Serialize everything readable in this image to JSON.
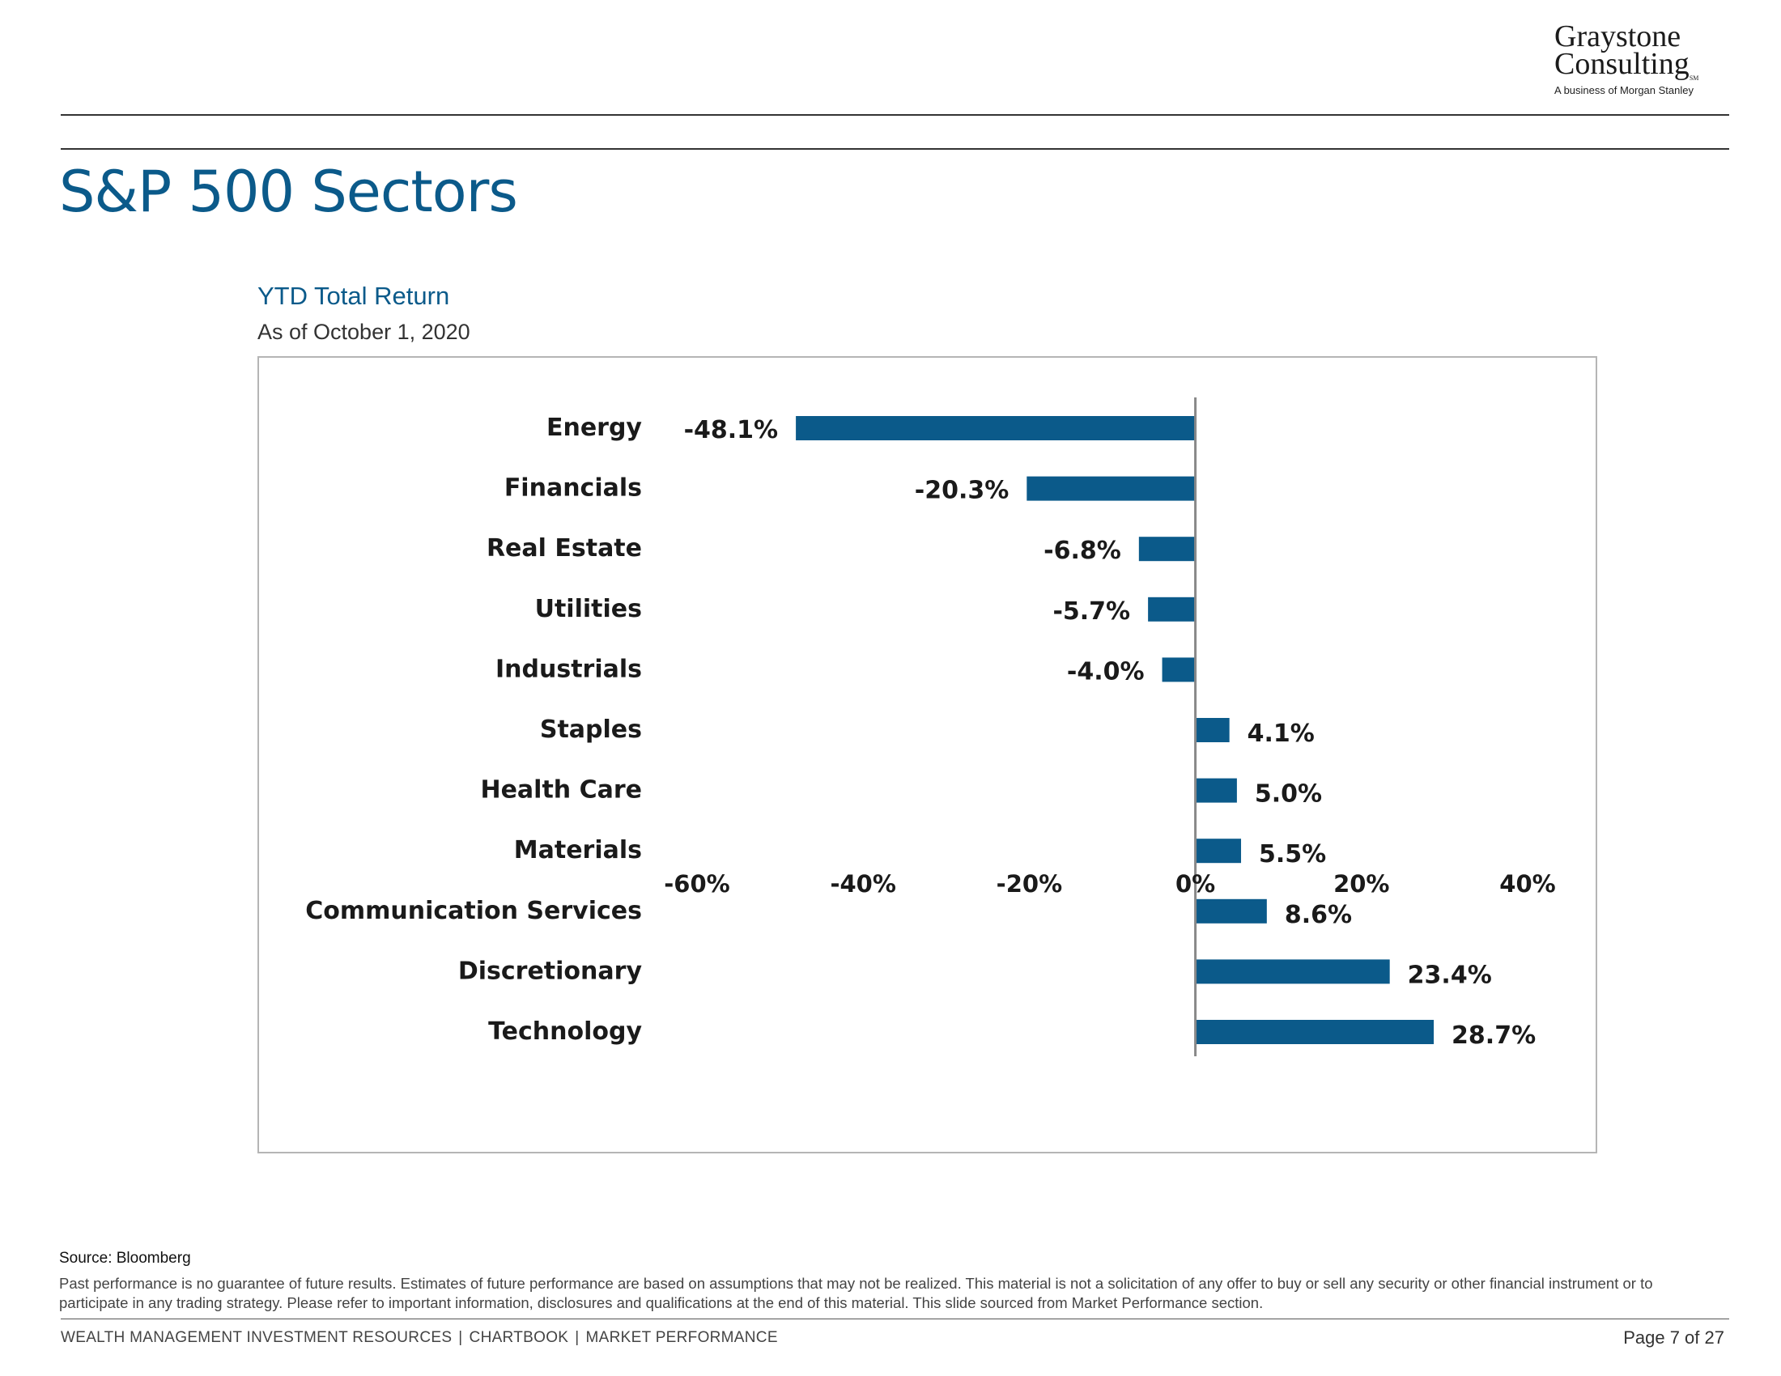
{
  "logo": {
    "line1": "Graystone",
    "line2": "Consulting",
    "mark": "SM",
    "tagline": "A business of Morgan Stanley"
  },
  "page_title": "S&P 500 Sectors",
  "chart_title": "YTD Total Return",
  "chart_subtitle": "As of October 1, 2020",
  "colors": {
    "bar": "#0b5a8a",
    "title": "#0b5a8a",
    "zero_line": "#888888"
  },
  "chart_data": {
    "type": "bar",
    "orientation": "horizontal",
    "categories": [
      "Energy",
      "Financials",
      "Real Estate",
      "Utilities",
      "Industrials",
      "Staples",
      "Health Care",
      "Materials",
      "Communication Services",
      "Discretionary",
      "Technology"
    ],
    "values": [
      -48.1,
      -20.3,
      -6.8,
      -5.7,
      -4.0,
      4.1,
      5.0,
      5.5,
      8.6,
      23.4,
      28.7
    ],
    "data_labels": [
      "-48.1%",
      "-20.3%",
      "-6.8%",
      "-5.7%",
      "-4.0%",
      "4.1%",
      "5.0%",
      "5.5%",
      "8.6%",
      "23.4%",
      "28.7%"
    ],
    "x_ticks": [
      -60,
      -40,
      -20,
      0,
      20,
      40
    ],
    "x_tick_labels": [
      "-60%",
      "-40%",
      "-20%",
      "0%",
      "20%",
      "40%"
    ],
    "xlim": [
      -60,
      40
    ],
    "grid": false,
    "legend": "none"
  },
  "footer": {
    "source": "Source: Bloomberg",
    "disclaimer": "Past performance is no guarantee of future results. Estimates of future performance are based on assumptions that may not be realized. This material is not a solicitation of any offer to buy or sell any security or other financial instrument or to participate in any trading strategy. Please refer to important information, disclosures and qualifications at the end of this material. This slide sourced from Market Performance section.",
    "nav": [
      "WEALTH MANAGEMENT INVESTMENT RESOURCES",
      "CHARTBOOK",
      "MARKET PERFORMANCE"
    ],
    "nav_separator": "|",
    "page": "Page 7 of 27"
  }
}
